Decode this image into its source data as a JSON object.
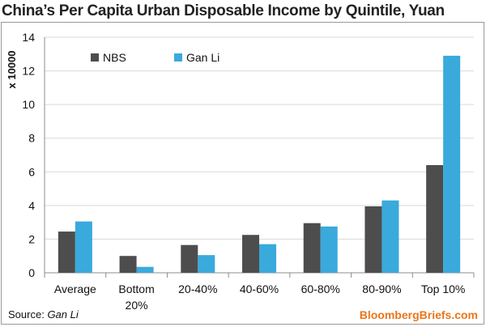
{
  "title": "China’s Per Capita Urban Disposable Income by Quintile, Yuan",
  "footer": {
    "source_label": "Source:",
    "source_name": "Gan Li",
    "brand": "BloombergBriefs.com",
    "brand_color": "#e8761c"
  },
  "chart_data": {
    "type": "bar",
    "title": "China’s Per Capita Urban Disposable Income by Quintile, Yuan",
    "xlabel": "",
    "ylabel": "x 10000",
    "ylim": [
      0,
      14
    ],
    "yticks": [
      "0",
      "2",
      "4",
      "6",
      "8",
      "10",
      "12",
      "14"
    ],
    "grid": true,
    "legend_position": "top-left",
    "categories": [
      [
        "Average"
      ],
      [
        "Bottom",
        "20%"
      ],
      [
        "20-40%"
      ],
      [
        "40-60%"
      ],
      [
        "60-80%"
      ],
      [
        "80-90%"
      ],
      [
        "Top 10%"
      ]
    ],
    "series": [
      {
        "name": "NBS",
        "color": "#4d4d4d",
        "values": [
          2.45,
          1.0,
          1.65,
          2.25,
          2.95,
          3.95,
          6.4
        ]
      },
      {
        "name": "Gan Li",
        "color": "#3aa9dc",
        "values": [
          3.05,
          0.35,
          1.05,
          1.7,
          2.75,
          4.3,
          12.9
        ]
      }
    ]
  }
}
